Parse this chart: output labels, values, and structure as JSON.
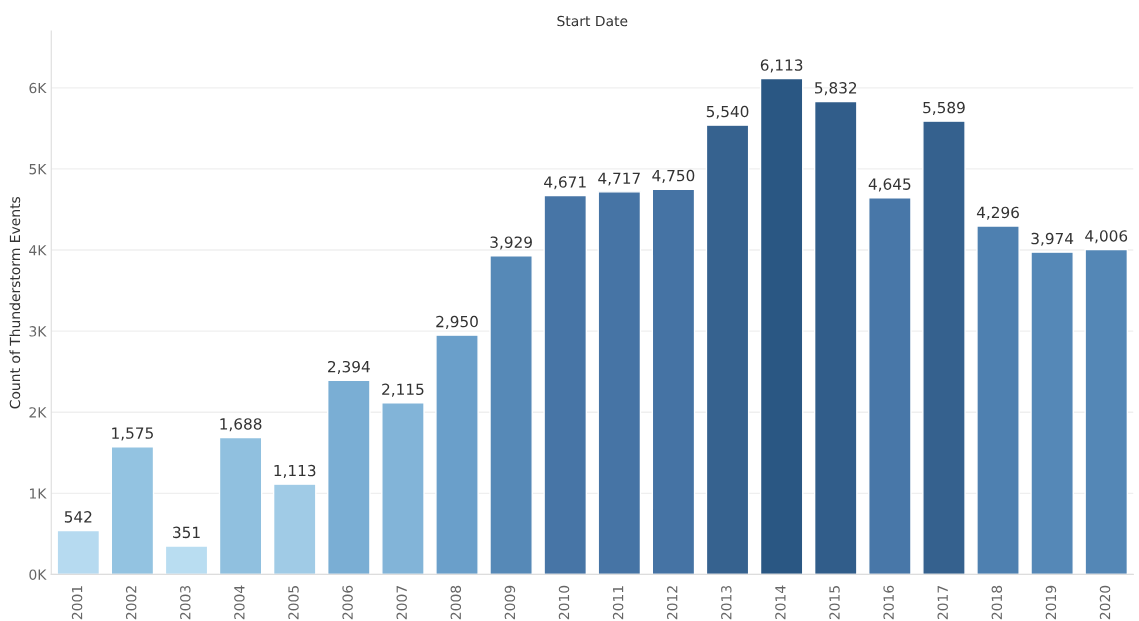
{
  "chart_data": {
    "type": "bar",
    "title": "Start Date",
    "ylabel": "Count of Thunderstorm Events",
    "categories": [
      "2001",
      "2002",
      "2003",
      "2004",
      "2005",
      "2006",
      "2007",
      "2008",
      "2009",
      "2010",
      "2011",
      "2012",
      "2013",
      "2014",
      "2015",
      "2016",
      "2017",
      "2018",
      "2019",
      "2020"
    ],
    "values": [
      542,
      1575,
      351,
      1688,
      1113,
      2394,
      2115,
      2950,
      3929,
      4671,
      4717,
      4750,
      5540,
      6113,
      5832,
      4645,
      5589,
      4296,
      3974,
      4006
    ],
    "colors": [
      "#b6daf0",
      "#93c3e1",
      "#b9ddf1",
      "#90c0df",
      "#a0cbe6",
      "#7aaed4",
      "#82b4d8",
      "#6a9fca",
      "#5689b7",
      "#4775a6",
      "#4674a5",
      "#4573a4",
      "#36628f",
      "#2a5783",
      "#315d8a",
      "#4877a8",
      "#35618e",
      "#4e80b0",
      "#5588b7",
      "#5487b6"
    ],
    "ylim": [
      0,
      6700
    ],
    "yticks": [
      {
        "value": 0,
        "label": "0K"
      },
      {
        "value": 1000,
        "label": "1K"
      },
      {
        "value": 2000,
        "label": "2K"
      },
      {
        "value": 3000,
        "label": "3K"
      },
      {
        "value": 4000,
        "label": "4K"
      },
      {
        "value": 5000,
        "label": "5K"
      },
      {
        "value": 6000,
        "label": "6K"
      }
    ],
    "value_labels": [
      "542",
      "1,575",
      "351",
      "1,688",
      "1,113",
      "2,394",
      "2,115",
      "2,950",
      "3,929",
      "4,671",
      "4,717",
      "4,750",
      "5,540",
      "6,113",
      "5,832",
      "4,645",
      "5,589",
      "4,296",
      "3,974",
      "4,006"
    ],
    "grid": "y"
  }
}
